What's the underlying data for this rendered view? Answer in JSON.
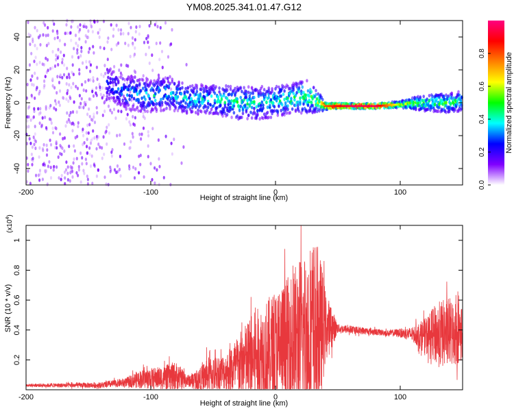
{
  "title": "YM08.2025.341.01.47.G12",
  "chart_data": [
    {
      "type": "heatmap",
      "name": "spectrogram",
      "xlabel": "Height of straight line (km)",
      "ylabel": "Frequency (Hz)",
      "xlim": [
        -200,
        150
      ],
      "ylim": [
        -50,
        50
      ],
      "xticks": [
        -200,
        -100,
        0,
        100
      ],
      "xtick_labels": [
        "-200",
        "-100",
        "0",
        "100"
      ],
      "yticks": [
        -40,
        -20,
        0,
        20,
        40
      ],
      "ytick_labels": [
        "-40",
        "-20",
        "0",
        "20",
        "40"
      ],
      "colorbar": {
        "label": "Normalized spectral amplitude",
        "range": [
          0,
          1
        ],
        "ticks": [
          0.0,
          0.2,
          0.4,
          0.6,
          0.8
        ],
        "tick_labels": [
          "0.0",
          "0.2",
          "0.4",
          "0.6",
          "0.8"
        ],
        "colors": [
          "#ffffff",
          "#8000ff",
          "#0000ff",
          "#00ffff",
          "#00ff00",
          "#ffff00",
          "#ff8000",
          "#ff0000",
          "#ff0080"
        ]
      },
      "ridge": {
        "x": [
          -135,
          -120,
          -100,
          -85,
          -70,
          -50,
          -30,
          -10,
          10,
          25,
          35,
          40,
          60,
          80,
          100,
          120,
          140,
          150
        ],
        "center_hz": [
          12,
          6,
          4,
          6,
          2,
          2,
          0,
          0,
          2,
          4,
          0,
          -2,
          -2,
          -2,
          -1,
          0,
          0,
          1
        ],
        "spread_hz": [
          10,
          10,
          10,
          10,
          9,
          9,
          10,
          10,
          9,
          10,
          6,
          2,
          1.5,
          1.5,
          2,
          5,
          6,
          6
        ],
        "amplitude": [
          0.25,
          0.3,
          0.35,
          0.35,
          0.35,
          0.35,
          0.4,
          0.35,
          0.4,
          0.45,
          0.5,
          0.8,
          0.95,
          0.95,
          0.55,
          0.45,
          0.45,
          0.4
        ]
      },
      "noise_region_x": [
        -200,
        -110
      ]
    },
    {
      "type": "line",
      "name": "snr",
      "xlabel": "Height of straight line (km)",
      "ylabel": "SNR (10 * v/v)",
      "y_multiplier_label": "(x10",
      "y_multiplier_exp": "4",
      "y_multiplier_close": ")",
      "xlim": [
        -200,
        150
      ],
      "ylim": [
        0,
        1.1
      ],
      "xticks": [
        -200,
        -100,
        0,
        100
      ],
      "xtick_labels": [
        "-200",
        "-100",
        "0",
        "100"
      ],
      "yticks": [
        0.2,
        0.4,
        0.6,
        0.8,
        1
      ],
      "ytick_labels": [
        "0.2",
        "0.4",
        "0.6",
        "0.8",
        "1"
      ],
      "color": "#e8383d",
      "envelope": {
        "x": [
          -200,
          -140,
          -120,
          -110,
          -90,
          -80,
          -70,
          -60,
          -55,
          -40,
          -35,
          -25,
          -20,
          -10,
          0,
          10,
          20,
          30,
          35,
          40,
          50,
          90,
          100,
          110,
          120,
          130,
          140,
          150
        ],
        "baseline": [
          0.03,
          0.03,
          0.05,
          0.07,
          0.08,
          0.09,
          0.06,
          0.07,
          0.1,
          0.12,
          0.13,
          0.18,
          0.2,
          0.24,
          0.27,
          0.31,
          0.35,
          0.38,
          0.4,
          0.42,
          0.41,
          0.38,
          0.38,
          0.37,
          0.36,
          0.37,
          0.38,
          0.39
        ],
        "amplitude": [
          0.01,
          0.02,
          0.03,
          0.06,
          0.08,
          0.1,
          0.04,
          0.08,
          0.12,
          0.12,
          0.18,
          0.25,
          0.3,
          0.34,
          0.4,
          0.45,
          0.55,
          0.65,
          0.55,
          0.25,
          0.03,
          0.02,
          0.03,
          0.05,
          0.12,
          0.22,
          0.24,
          0.2
        ]
      }
    }
  ]
}
